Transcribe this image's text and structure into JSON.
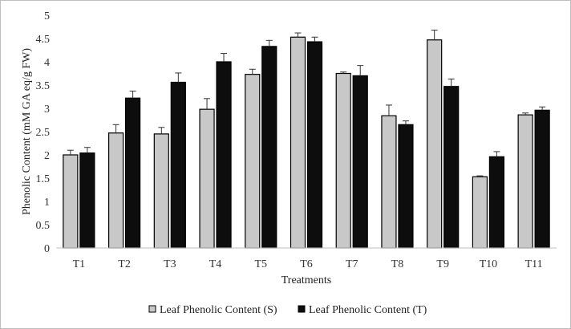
{
  "chart_data": {
    "type": "bar",
    "xlabel": "Treatments",
    "ylabel": "Phenolic Content (mM GA eq/g FW)",
    "ylim": [
      0,
      5
    ],
    "yticks": [
      "0",
      "0.5",
      "1",
      "1.5",
      "2",
      "2.5",
      "3",
      "3.5",
      "4",
      "4.5",
      "5"
    ],
    "grid": false,
    "legend_position": "bottom",
    "categories": [
      "T1",
      "T2",
      "T3",
      "T4",
      "T5",
      "T6",
      "T7",
      "T8",
      "T9",
      "T10",
      "T11"
    ],
    "series": [
      {
        "name": "Leaf Phenolic Content (S)",
        "color": "#c8c8c8",
        "values": [
          2.0,
          2.47,
          2.45,
          2.98,
          3.73,
          4.53,
          3.75,
          2.84,
          4.47,
          1.53,
          2.86
        ],
        "errors": [
          0.1,
          0.18,
          0.14,
          0.23,
          0.11,
          0.09,
          0.03,
          0.23,
          0.21,
          0.02,
          0.04
        ]
      },
      {
        "name": "Leaf Phenolic Content (T)",
        "color": "#0d0d0d",
        "values": [
          2.04,
          3.22,
          3.56,
          4.0,
          4.33,
          4.43,
          3.7,
          2.65,
          3.47,
          1.96,
          2.96
        ],
        "errors": [
          0.12,
          0.15,
          0.2,
          0.18,
          0.13,
          0.1,
          0.22,
          0.08,
          0.16,
          0.11,
          0.07
        ]
      }
    ]
  }
}
